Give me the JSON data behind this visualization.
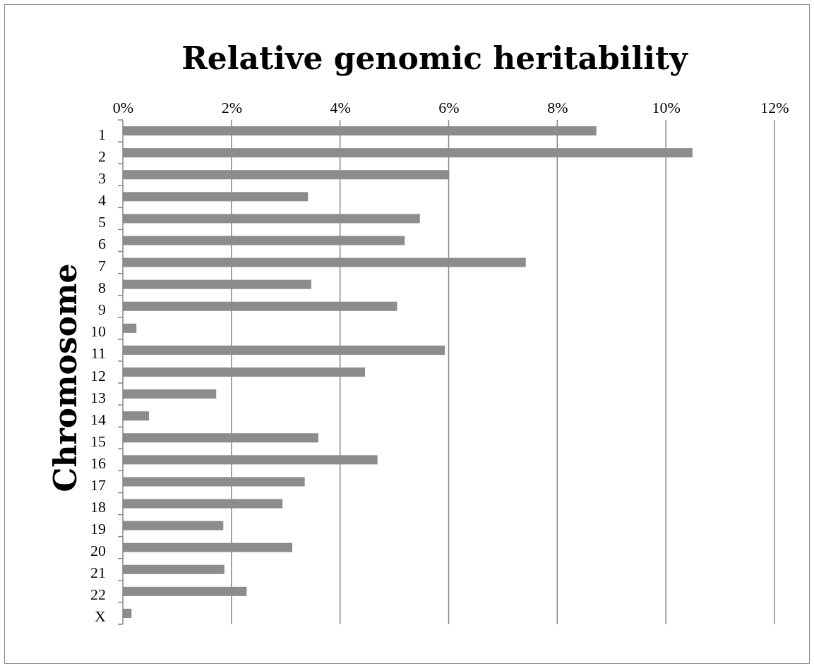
{
  "chart_data": {
    "type": "bar",
    "orientation": "horizontal",
    "title": "Relative genomic heritability",
    "ylabel": "Chromosome",
    "categories": [
      "1",
      "2",
      "3",
      "4",
      "5",
      "6",
      "7",
      "8",
      "9",
      "10",
      "11",
      "12",
      "13",
      "14",
      "15",
      "16",
      "17",
      "18",
      "19",
      "20",
      "21",
      "22",
      "X"
    ],
    "values": [
      8.72,
      10.49,
      6.01,
      3.41,
      5.47,
      5.19,
      7.42,
      3.47,
      5.05,
      0.25,
      5.93,
      4.46,
      1.72,
      0.48,
      3.6,
      4.69,
      3.35,
      2.94,
      1.85,
      3.12,
      1.87,
      2.28,
      0.16
    ],
    "color": "#8c8c8c",
    "xlim": [
      0,
      12
    ],
    "xticks": [
      {
        "value": 0,
        "label": "0%"
      },
      {
        "value": 2,
        "label": "2%"
      },
      {
        "value": 4,
        "label": "4%"
      },
      {
        "value": 6,
        "label": "6%"
      },
      {
        "value": 8,
        "label": "8%"
      },
      {
        "value": 10,
        "label": "10%"
      },
      {
        "value": 12,
        "label": "12%"
      }
    ],
    "grid": "x"
  }
}
